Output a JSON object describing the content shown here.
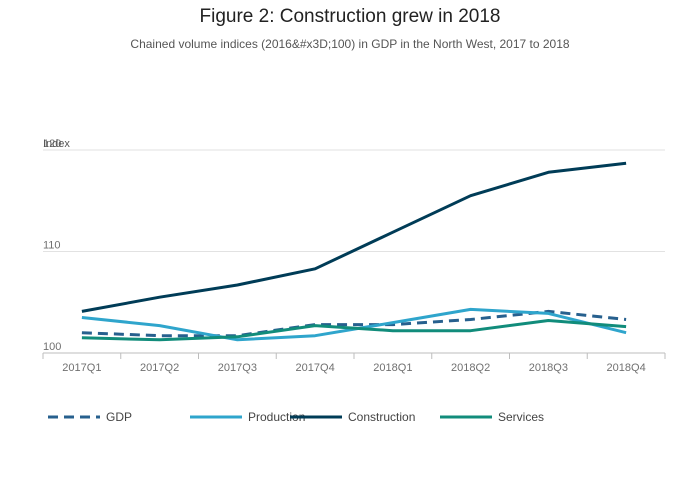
{
  "chart_data": {
    "type": "line",
    "title": "Figure 2: Construction grew in 2018",
    "subtitle": "Chained volume indices (2016&#x3D;100) in GDP in the North West, 2017 to 2018",
    "ylabel": "Index",
    "xlabel": "",
    "categories": [
      "2017Q1",
      "2017Q2",
      "2017Q3",
      "2017Q4",
      "2018Q1",
      "2018Q2",
      "2018Q3",
      "2018Q4"
    ],
    "ylim": [
      100,
      120
    ],
    "yticks": [
      100,
      110,
      120
    ],
    "grid": true,
    "legend_position": "bottom",
    "series": [
      {
        "name": "GDP",
        "color": "#27608e",
        "dash": true,
        "values": [
          102.0,
          101.7,
          101.7,
          102.8,
          102.8,
          103.3,
          104.1,
          103.3
        ]
      },
      {
        "name": "Production",
        "color": "#2fa5cc",
        "dash": false,
        "values": [
          103.5,
          102.7,
          101.3,
          101.7,
          103.0,
          104.3,
          103.9,
          102.0
        ]
      },
      {
        "name": "Construction",
        "color": "#003c57",
        "dash": false,
        "values": [
          104.1,
          105.5,
          106.7,
          108.3,
          111.9,
          115.5,
          117.8,
          118.7
        ]
      },
      {
        "name": "Services",
        "color": "#118c7b",
        "dash": false,
        "values": [
          101.5,
          101.3,
          101.6,
          102.7,
          102.2,
          102.2,
          103.2,
          102.6
        ]
      }
    ]
  }
}
